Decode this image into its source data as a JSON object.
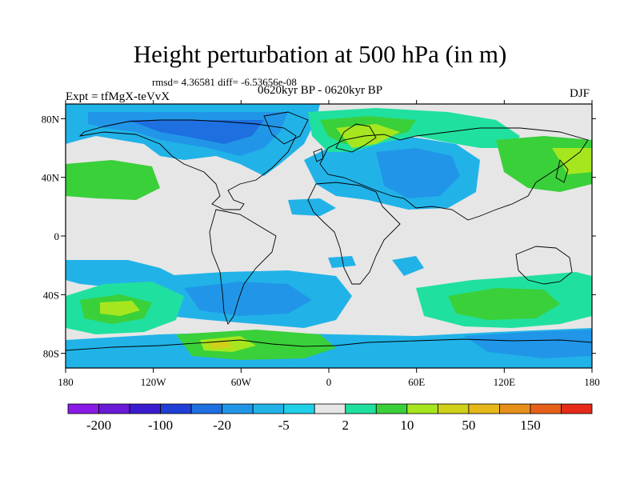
{
  "title": "Height perturbation at 500 hPa (in m)",
  "stats": "rmsd= 4.36581 diff= -6.53656e-08",
  "period": "0620kyr BP - 0620kyr BP",
  "experiment": "Expt = tfMgX-teVvX",
  "season": "DJF",
  "map": {
    "projection": "cylindrical equidistant",
    "lon_range": [
      -180,
      180
    ],
    "lat_range": [
      -90,
      90
    ],
    "lon_ticks": [
      "180",
      "120W",
      "60W",
      "0",
      "60E",
      "120E",
      "180"
    ],
    "lat_ticks": [
      "80N",
      "40N",
      "0",
      "40S",
      "80S"
    ],
    "background_color": "#e6e6e6",
    "coastline_color": "#000000"
  },
  "colorbar": {
    "labels": [
      "-200",
      "-100",
      "-20",
      "-5",
      "2",
      "10",
      "50",
      "150"
    ],
    "colors": [
      "#8a1be6",
      "#6a1bd8",
      "#3b1bd0",
      "#1f3fd6",
      "#1e6fe0",
      "#2196e8",
      "#21b3e8",
      "#1fd0e8",
      "#e6e6e6",
      "#20e0a0",
      "#3ad03a",
      "#a6e61f",
      "#d0d01a",
      "#e6b81a",
      "#e6901a",
      "#e6601a",
      "#e62a1a"
    ]
  }
}
